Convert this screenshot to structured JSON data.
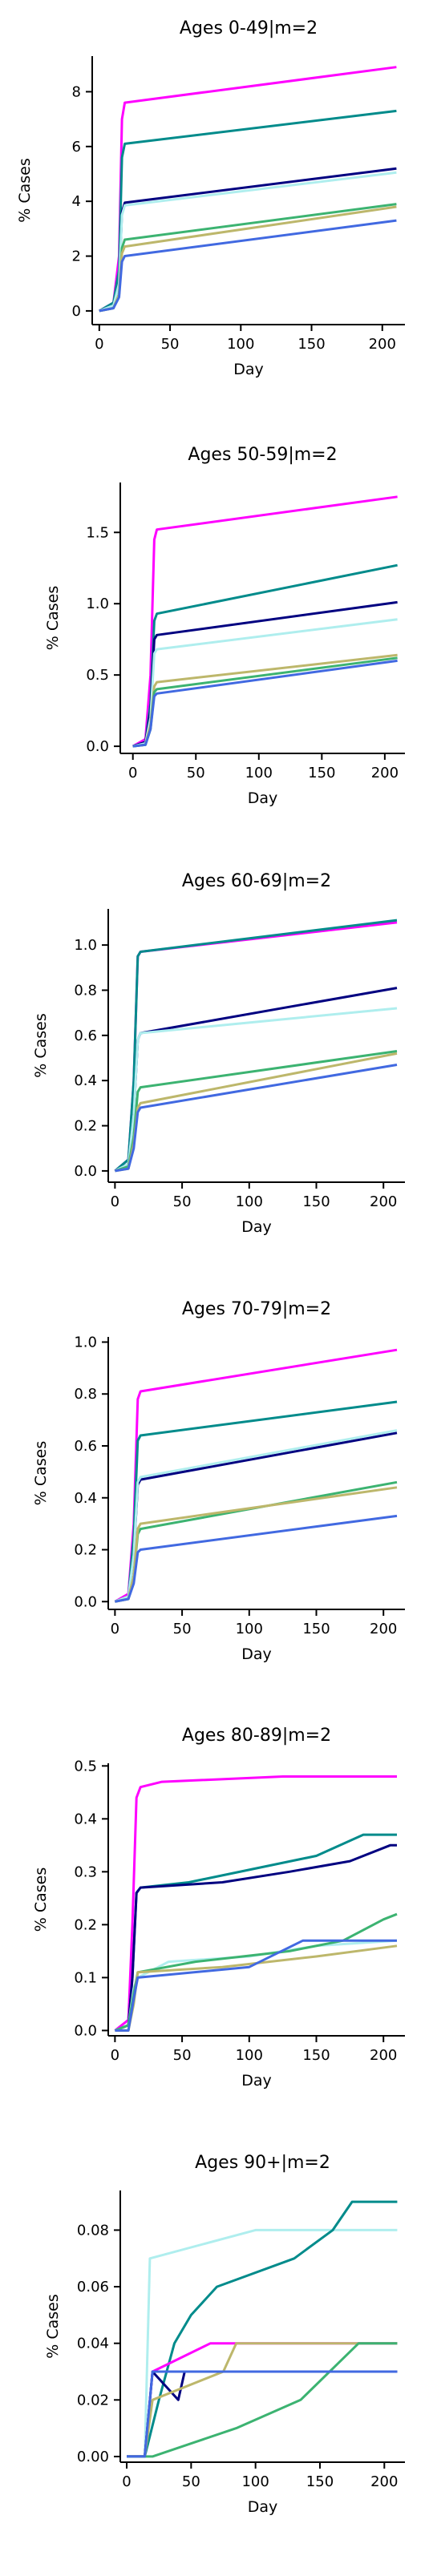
{
  "chart_data": [
    {
      "type": "line",
      "title": "Ages 0-49|m=2",
      "xlabel": "Day",
      "ylabel": "% Cases",
      "xlim": [
        -5,
        216
      ],
      "ylim": [
        -0.5,
        9.3
      ],
      "xticks": [
        0,
        50,
        100,
        150,
        200
      ],
      "yticks": [
        0,
        2,
        4,
        6,
        8
      ],
      "yticklabels": [
        "0",
        "2",
        "4",
        "6",
        "8"
      ],
      "grid": false,
      "series": [
        {
          "color": "#ff00ff",
          "x": [
            0,
            10,
            14,
            16,
            18,
            210
          ],
          "y": [
            0,
            0.3,
            2.0,
            7.0,
            7.6,
            8.9
          ]
        },
        {
          "color": "#008b8b",
          "x": [
            0,
            10,
            14,
            16,
            18,
            210
          ],
          "y": [
            0,
            0.3,
            1.5,
            5.6,
            6.1,
            7.3
          ]
        },
        {
          "color": "#000080",
          "x": [
            0,
            10,
            14,
            16,
            18,
            210
          ],
          "y": [
            0,
            0.2,
            1.0,
            3.6,
            3.95,
            5.2
          ]
        },
        {
          "color": "#afeeee",
          "x": [
            0,
            10,
            14,
            16,
            18,
            210
          ],
          "y": [
            0,
            0.2,
            1.0,
            3.5,
            3.85,
            5.05
          ]
        },
        {
          "color": "#3cb371",
          "x": [
            0,
            10,
            14,
            16,
            18,
            210
          ],
          "y": [
            0,
            0.1,
            0.6,
            2.3,
            2.6,
            3.9
          ]
        },
        {
          "color": "#bdb76b",
          "x": [
            0,
            10,
            14,
            16,
            18,
            210
          ],
          "y": [
            0,
            0.1,
            0.6,
            2.1,
            2.35,
            3.8
          ]
        },
        {
          "color": "#4169e1",
          "x": [
            0,
            10,
            14,
            16,
            18,
            210
          ],
          "y": [
            0,
            0.1,
            0.5,
            1.8,
            2.0,
            3.3
          ]
        }
      ]
    },
    {
      "type": "line",
      "title": "Ages 50-59|m=2",
      "xlabel": "Day",
      "ylabel": "% Cases",
      "xlim": [
        -10,
        216
      ],
      "ylim": [
        -0.05,
        1.85
      ],
      "xticks": [
        0,
        50,
        100,
        150,
        200
      ],
      "yticks": [
        0,
        0.5,
        1.0,
        1.5
      ],
      "yticklabels": [
        "0.0",
        "0.5",
        "1.0",
        "1.5"
      ],
      "grid": false,
      "series": [
        {
          "color": "#ff00ff",
          "x": [
            0,
            10,
            14,
            17,
            19,
            210
          ],
          "y": [
            0,
            0.05,
            0.5,
            1.45,
            1.52,
            1.75
          ]
        },
        {
          "color": "#008b8b",
          "x": [
            0,
            10,
            14,
            17,
            19,
            210
          ],
          "y": [
            0,
            0.03,
            0.3,
            0.88,
            0.93,
            1.27
          ]
        },
        {
          "color": "#000080",
          "x": [
            0,
            10,
            14,
            17,
            19,
            210
          ],
          "y": [
            0,
            0.03,
            0.25,
            0.75,
            0.78,
            1.01
          ]
        },
        {
          "color": "#afeeee",
          "x": [
            0,
            10,
            14,
            17,
            19,
            210
          ],
          "y": [
            0,
            0.02,
            0.2,
            0.65,
            0.68,
            0.89
          ]
        },
        {
          "color": "#bdb76b",
          "x": [
            0,
            10,
            14,
            17,
            19,
            210
          ],
          "y": [
            0,
            0.01,
            0.15,
            0.42,
            0.45,
            0.64
          ]
        },
        {
          "color": "#3cb371",
          "x": [
            0,
            10,
            14,
            17,
            19,
            210
          ],
          "y": [
            0,
            0.01,
            0.12,
            0.38,
            0.4,
            0.62
          ]
        },
        {
          "color": "#4169e1",
          "x": [
            0,
            10,
            14,
            17,
            19,
            210
          ],
          "y": [
            0,
            0.01,
            0.12,
            0.35,
            0.37,
            0.6
          ]
        }
      ]
    },
    {
      "type": "line",
      "title": "Ages 60-69|m=2",
      "xlabel": "Day",
      "ylabel": "% Cases",
      "xlim": [
        -5,
        216
      ],
      "ylim": [
        -0.05,
        1.16
      ],
      "xticks": [
        0,
        50,
        100,
        150,
        200
      ],
      "yticks": [
        0,
        0.2,
        0.4,
        0.6,
        0.8,
        1.0
      ],
      "yticklabels": [
        "0.0",
        "0.2",
        "0.4",
        "0.6",
        "0.8",
        "1.0"
      ],
      "grid": false,
      "series": [
        {
          "color": "#ff00ff",
          "x": [
            0,
            10,
            14,
            17,
            19,
            210
          ],
          "y": [
            0,
            0.05,
            0.4,
            0.95,
            0.97,
            1.1
          ]
        },
        {
          "color": "#008b8b",
          "x": [
            0,
            10,
            14,
            17,
            19,
            210
          ],
          "y": [
            0,
            0.05,
            0.4,
            0.95,
            0.97,
            1.11
          ]
        },
        {
          "color": "#000080",
          "x": [
            0,
            10,
            14,
            17,
            19,
            210
          ],
          "y": [
            0,
            0.03,
            0.25,
            0.58,
            0.61,
            0.81
          ]
        },
        {
          "color": "#afeeee",
          "x": [
            0,
            10,
            14,
            17,
            19,
            210
          ],
          "y": [
            0,
            0.03,
            0.25,
            0.58,
            0.61,
            0.72
          ]
        },
        {
          "color": "#3cb371",
          "x": [
            0,
            10,
            14,
            17,
            19,
            210
          ],
          "y": [
            0,
            0.02,
            0.15,
            0.35,
            0.37,
            0.53
          ]
        },
        {
          "color": "#bdb76b",
          "x": [
            0,
            10,
            14,
            17,
            19,
            210
          ],
          "y": [
            0,
            0.01,
            0.12,
            0.28,
            0.3,
            0.52
          ]
        },
        {
          "color": "#4169e1",
          "x": [
            0,
            10,
            14,
            17,
            19,
            210
          ],
          "y": [
            0,
            0.01,
            0.1,
            0.26,
            0.28,
            0.47
          ]
        }
      ]
    },
    {
      "type": "line",
      "title": "Ages 70-79|m=2",
      "xlabel": "Day",
      "ylabel": "% Cases",
      "xlim": [
        -5,
        216
      ],
      "ylim": [
        -0.03,
        1.02
      ],
      "xticks": [
        0,
        50,
        100,
        150,
        200
      ],
      "yticks": [
        0,
        0.2,
        0.4,
        0.6,
        0.8,
        1.0
      ],
      "yticklabels": [
        "0.0",
        "0.2",
        "0.4",
        "0.6",
        "0.8",
        "1.0"
      ],
      "grid": false,
      "series": [
        {
          "color": "#ff00ff",
          "x": [
            0,
            10,
            14,
            17,
            19,
            210
          ],
          "y": [
            0,
            0.03,
            0.3,
            0.78,
            0.81,
            0.97
          ]
        },
        {
          "color": "#008b8b",
          "x": [
            0,
            10,
            14,
            17,
            19,
            210
          ],
          "y": [
            0,
            0.02,
            0.25,
            0.62,
            0.64,
            0.77
          ]
        },
        {
          "color": "#000080",
          "x": [
            0,
            10,
            14,
            17,
            19,
            210
          ],
          "y": [
            0,
            0.02,
            0.18,
            0.45,
            0.47,
            0.65
          ]
        },
        {
          "color": "#afeeee",
          "x": [
            0,
            10,
            14,
            17,
            19,
            210
          ],
          "y": [
            0,
            0.02,
            0.18,
            0.46,
            0.48,
            0.66
          ]
        },
        {
          "color": "#3cb371",
          "x": [
            0,
            10,
            14,
            17,
            19,
            210
          ],
          "y": [
            0,
            0.01,
            0.1,
            0.26,
            0.28,
            0.46
          ]
        },
        {
          "color": "#bdb76b",
          "x": [
            0,
            10,
            14,
            17,
            19,
            210
          ],
          "y": [
            0,
            0.01,
            0.1,
            0.28,
            0.3,
            0.44
          ]
        },
        {
          "color": "#4169e1",
          "x": [
            0,
            10,
            14,
            17,
            19,
            210
          ],
          "y": [
            0,
            0.01,
            0.07,
            0.19,
            0.2,
            0.33
          ]
        }
      ]
    },
    {
      "type": "line",
      "title": "Ages 80-89|m=2",
      "xlabel": "Day",
      "ylabel": "% Cases",
      "xlim": [
        -5,
        216
      ],
      "ylim": [
        -0.01,
        0.505
      ],
      "xticks": [
        0,
        50,
        100,
        150,
        200
      ],
      "yticks": [
        0,
        0.1,
        0.2,
        0.3,
        0.4,
        0.5
      ],
      "yticklabels": [
        "0.0",
        "0.1",
        "0.2",
        "0.3",
        "0.4",
        "0.5"
      ],
      "grid": false,
      "series": [
        {
          "color": "#ff00ff",
          "x": [
            0,
            10,
            13,
            16,
            19,
            35,
            125,
            210
          ],
          "y": [
            0,
            0.02,
            0.2,
            0.44,
            0.46,
            0.47,
            0.48,
            0.48
          ]
        },
        {
          "color": "#008b8b",
          "x": [
            0,
            10,
            13,
            16,
            19,
            55,
            150,
            185,
            210
          ],
          "y": [
            0,
            0.01,
            0.1,
            0.26,
            0.27,
            0.28,
            0.33,
            0.37,
            0.37
          ]
        },
        {
          "color": "#000080",
          "x": [
            0,
            10,
            13,
            16,
            19,
            80,
            130,
            175,
            205,
            210
          ],
          "y": [
            0,
            0.01,
            0.1,
            0.26,
            0.27,
            0.28,
            0.3,
            0.32,
            0.35,
            0.35
          ]
        },
        {
          "color": "#afeeee",
          "x": [
            0,
            10,
            14,
            17,
            40,
            100,
            150,
            210
          ],
          "y": [
            0,
            0.01,
            0.08,
            0.1,
            0.13,
            0.14,
            0.16,
            0.17
          ]
        },
        {
          "color": "#3cb371",
          "x": [
            0,
            10,
            14,
            17,
            60,
            130,
            170,
            200,
            210
          ],
          "y": [
            0,
            0.01,
            0.07,
            0.11,
            0.13,
            0.15,
            0.17,
            0.21,
            0.22
          ]
        },
        {
          "color": "#bdb76b",
          "x": [
            0,
            10,
            14,
            17,
            80,
            150,
            210
          ],
          "y": [
            0,
            0.0,
            0.05,
            0.11,
            0.12,
            0.14,
            0.16
          ]
        },
        {
          "color": "#4169e1",
          "x": [
            0,
            10,
            14,
            17,
            100,
            140,
            210
          ],
          "y": [
            0,
            0.0,
            0.06,
            0.1,
            0.12,
            0.17,
            0.17
          ]
        }
      ]
    },
    {
      "type": "line",
      "title": "Ages 90+|m=2",
      "xlabel": "Day",
      "ylabel": "% Cases",
      "xlim": [
        -5,
        216
      ],
      "ylim": [
        -0.002,
        0.094
      ],
      "xticks": [
        0,
        50,
        100,
        150,
        200
      ],
      "yticks": [
        0,
        0.02,
        0.04,
        0.06,
        0.08
      ],
      "yticklabels": [
        "0.00",
        "0.02",
        "0.04",
        "0.06",
        "0.08"
      ],
      "grid": false,
      "series": [
        {
          "color": "#afeeee",
          "x": [
            0,
            14,
            18,
            100,
            210
          ],
          "y": [
            0,
            0.0,
            0.07,
            0.08,
            0.08
          ]
        },
        {
          "color": "#008b8b",
          "x": [
            0,
            14,
            25,
            37,
            50,
            70,
            130,
            160,
            175,
            210
          ],
          "y": [
            0,
            0.0,
            0.02,
            0.04,
            0.05,
            0.06,
            0.07,
            0.08,
            0.09,
            0.09
          ]
        },
        {
          "color": "#ff00ff",
          "x": [
            0,
            14,
            20,
            65,
            130,
            210
          ],
          "y": [
            0,
            0.0,
            0.03,
            0.04,
            0.04,
            0.04
          ]
        },
        {
          "color": "#000080",
          "x": [
            0,
            14,
            20,
            40,
            45,
            210
          ],
          "y": [
            0,
            0.0,
            0.03,
            0.02,
            0.03,
            0.03
          ]
        },
        {
          "color": "#bdb76b",
          "x": [
            0,
            14,
            20,
            75,
            85,
            210
          ],
          "y": [
            0,
            0.0,
            0.02,
            0.03,
            0.04,
            0.04
          ]
        },
        {
          "color": "#3cb371",
          "x": [
            0,
            14,
            20,
            85,
            135,
            180,
            210
          ],
          "y": [
            0,
            0.0,
            0.0,
            0.01,
            0.02,
            0.04,
            0.04
          ]
        },
        {
          "color": "#4169e1",
          "x": [
            0,
            14,
            20,
            210
          ],
          "y": [
            0,
            0.0,
            0.03,
            0.03
          ]
        }
      ]
    }
  ]
}
